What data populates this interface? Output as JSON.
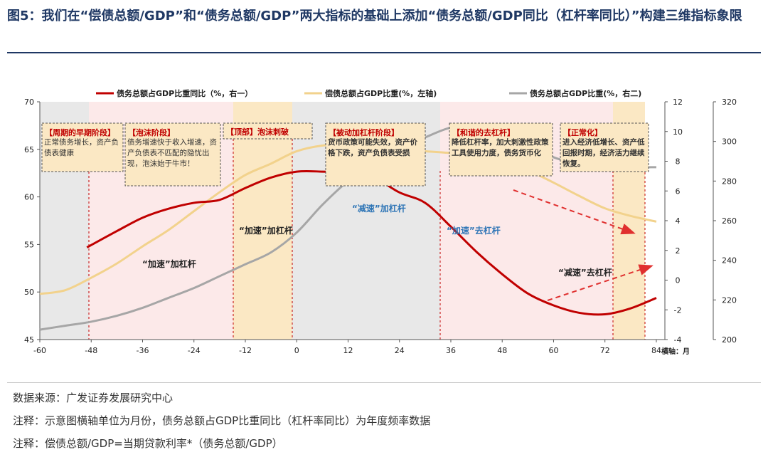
{
  "figure": {
    "title": "图5：我们在“偿债总额/GDP”和“债务总额/GDP”两大指标的基础上添加“债务总额/GDP同比（杠杆率同比）”构建三维指标象限"
  },
  "footnotes": {
    "source": "数据来源：广发证券发展研究中心",
    "note1": "注释：示意图横轴单位为月份，债务总额占GDP比重同比（杠杆率同比）为年度频率数据",
    "note2": "注释：偿债总额/GDP=当期贷款利率*（债务总额/GDP）"
  },
  "colors": {
    "yoy": "#c00000",
    "service": "#f2d28c",
    "debt": "#a6a6a6",
    "box_fill": "#fbe8c4",
    "pink": "#fce9e9",
    "gray_region": "#e8e8e8",
    "arrow": "#e0302f",
    "blue_text": "#2e75b6"
  },
  "chart_data": {
    "type": "line",
    "x_label": "横轴：月",
    "x_ticks": [
      -60,
      -48,
      -36,
      -24,
      -12,
      0,
      12,
      24,
      36,
      48,
      60,
      72,
      84
    ],
    "xlim": [
      -60,
      86
    ],
    "left_axis": {
      "ylim": [
        45,
        70
      ],
      "ticks": [
        45,
        50,
        55,
        60,
        65,
        70
      ]
    },
    "right1_axis": {
      "ylim": [
        -4,
        12
      ],
      "ticks": [
        -4,
        -2,
        0,
        2,
        4,
        6,
        8,
        10,
        12
      ]
    },
    "right2_axis": {
      "ylim": [
        200,
        320
      ],
      "ticks": [
        200,
        220,
        240,
        260,
        280,
        300,
        320
      ]
    },
    "legend": [
      {
        "key": "yoy",
        "label": "债务总额占GDP比重同比（%，右一）"
      },
      {
        "key": "service",
        "label": "偿债总额占GDP比重(%，左轴)"
      },
      {
        "key": "debt",
        "label": "债务总额占GDP比重(%，右二)"
      }
    ],
    "series": [
      {
        "name": "债务总额占GDP比重同比（%，右一）",
        "axis": "right1",
        "color": "#c00000",
        "x": [
          -49,
          -42,
          -36,
          -30,
          -24,
          -18,
          -12,
          -6,
          0,
          6,
          12,
          18,
          24,
          30,
          36,
          42,
          48,
          54,
          60,
          66,
          72,
          78,
          84
        ],
        "y": [
          2.2,
          3.3,
          4.2,
          4.8,
          5.2,
          5.4,
          6.2,
          6.9,
          7.3,
          7.3,
          7.2,
          6.9,
          5.9,
          5.2,
          3.6,
          1.9,
          0.4,
          -0.9,
          -1.7,
          -2.2,
          -2.3,
          -1.9,
          -1.2
        ]
      },
      {
        "name": "偿债总额占GDP比重(%，左轴)",
        "axis": "left",
        "color": "#f2d28c",
        "x": [
          -60,
          -54,
          -48,
          -42,
          -36,
          -30,
          -24,
          -18,
          -12,
          -6,
          0,
          6,
          12,
          18,
          24,
          30,
          36,
          42,
          48,
          54,
          60,
          66,
          72,
          78,
          84
        ],
        "y": [
          49.8,
          50.2,
          51.5,
          53,
          54.8,
          56.5,
          58.5,
          60.5,
          62.3,
          63.5,
          64.8,
          65.4,
          65.5,
          65.3,
          65,
          64.8,
          64.6,
          64.2,
          63.7,
          62.8,
          61.5,
          60.1,
          58.8,
          58,
          57.4
        ]
      },
      {
        "name": "债务总额占GDP比重(%，右二)",
        "axis": "right2",
        "color": "#a6a6a6",
        "x": [
          -60,
          -54,
          -48,
          -42,
          -36,
          -30,
          -24,
          -18,
          -12,
          -6,
          0,
          6,
          12,
          18,
          24,
          30,
          36,
          42,
          48,
          54,
          60,
          66,
          72,
          78,
          84
        ],
        "y": [
          205,
          207,
          209,
          212,
          216,
          221,
          226,
          232,
          238,
          244,
          254,
          268,
          280,
          289,
          296,
          302,
          307,
          308,
          305,
          299,
          292,
          289,
          288,
          287,
          287
        ]
      }
    ],
    "phase_boxes": [
      {
        "title": "【周期的早期阶段】",
        "text": "正常债务增长，资产负债表健康"
      },
      {
        "title": "【泡沫阶段】",
        "text": "债务增速快于收入增速，资产负债表不匹配的隐忧出现，泡沫始于牛市！"
      },
      {
        "title": "【顶部】",
        "text": "泡沫刺破"
      },
      {
        "title": "【被动加杠杆阶段】",
        "text": "货币政策可能失效，资产价格下跌，资产负债表受损"
      },
      {
        "title": "【和谐的去杠杆】",
        "text": "降低杠杆率，加大刺激性政策工具使用力度，债务货币化"
      },
      {
        "title": "【正常化】",
        "text": "进入经济低增长、资产低回报时期，经济活力继续恢复。"
      }
    ],
    "annotations": [
      {
        "text": "“加速”加杠杆"
      },
      {
        "text": "“加速”加杠杆"
      },
      {
        "text": "“减速”加杠杆"
      },
      {
        "text": "“加速”去杠杆"
      },
      {
        "text": "“减速”去杠杆"
      }
    ]
  }
}
